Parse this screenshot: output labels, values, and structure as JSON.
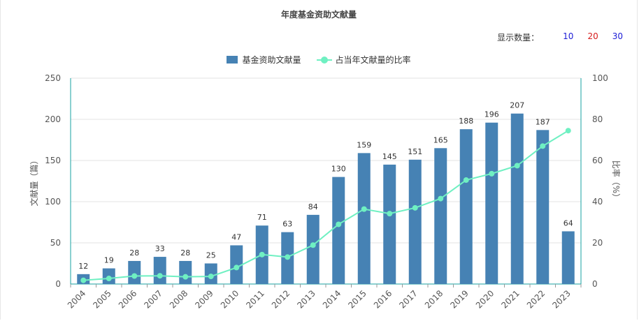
{
  "title": "年度基金资助文献量",
  "display": {
    "label": "显示数量：",
    "options": [
      "10",
      "20",
      "30"
    ]
  },
  "colors": {
    "bar": "#4682b4",
    "line": "#6ff0c2",
    "axis": "#17a2a2",
    "grid": "#e3e3e3"
  },
  "chart_data": {
    "type": "bar",
    "title": "年度基金资助文献量",
    "categories": [
      "2004",
      "2005",
      "2006",
      "2007",
      "2008",
      "2009",
      "2010",
      "2011",
      "2012",
      "2013",
      "2014",
      "2015",
      "2016",
      "2017",
      "2018",
      "2019",
      "2020",
      "2021",
      "2022",
      "2023"
    ],
    "series": [
      {
        "name": "基金资助文献量",
        "type": "bar",
        "axis": "left",
        "values": [
          12,
          19,
          28,
          33,
          28,
          25,
          47,
          71,
          63,
          84,
          130,
          159,
          145,
          151,
          165,
          188,
          196,
          207,
          187,
          64
        ]
      },
      {
        "name": "占当年文献量的比率",
        "type": "line",
        "axis": "right",
        "values": [
          1.8,
          2.7,
          3.9,
          4.0,
          3.5,
          3.7,
          8.0,
          14.3,
          13.1,
          18.9,
          29.0,
          36.4,
          34.2,
          37.0,
          41.5,
          50.5,
          53.6,
          57.5,
          67.0,
          74.5
        ]
      }
    ],
    "ylabel": "文献量（篇）",
    "y2label": "比率（%）",
    "ylim": [
      0,
      250
    ],
    "y2lim": [
      0,
      100
    ],
    "yticks": [
      0,
      50,
      100,
      150,
      200,
      250
    ],
    "y2ticks": [
      0,
      20,
      40,
      60,
      80,
      100
    ],
    "grid": true,
    "legend": "top-center"
  }
}
